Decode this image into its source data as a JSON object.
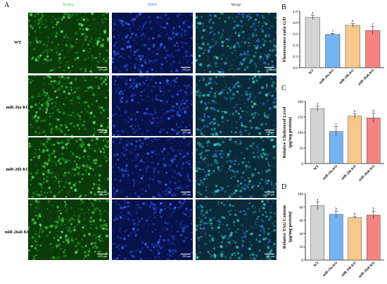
{
  "panel_a": {
    "letter": "A",
    "columns": [
      {
        "label": "Bodipy",
        "color": "#2ecc40"
      },
      {
        "label": "DAPI",
        "color": "#3b6cff"
      },
      {
        "label": "Merge",
        "color": "#333333"
      }
    ],
    "rows": [
      "WT",
      "miR-26a KO",
      "miR-26b KO",
      "miR-26ab KO"
    ],
    "scale_label": "200 μm"
  },
  "chart_data": [
    {
      "panel": "B",
      "type": "bar",
      "categories": [
        "WT",
        "miR-26a KO",
        "miR-26b KO",
        "miR-26ab KO"
      ],
      "values": [
        0.89,
        0.59,
        0.75,
        0.66
      ],
      "errors": [
        0.04,
        0.02,
        0.03,
        0.07
      ],
      "sig_letters": [
        "a",
        "c",
        "b",
        "c"
      ],
      "colors": [
        "#d3d3d3",
        "#74b4f2",
        "#f7c88a",
        "#f48482"
      ],
      "ylabel": "Fluorescence ratio G/D",
      "ylim": [
        0,
        1.0
      ],
      "yticks": [
        "0.0",
        "0.2",
        "0.4",
        "0.6",
        "0.8",
        "1.0"
      ]
    },
    {
      "panel": "C",
      "type": "bar",
      "categories": [
        "WT",
        "miR-26a KO",
        "miR-26b KO",
        "miR-26ab KO"
      ],
      "values": [
        177,
        103,
        153,
        147
      ],
      "errors": [
        8,
        16,
        7,
        15
      ],
      "sig_letters": [
        "a",
        "c",
        "b",
        "b"
      ],
      "colors": [
        "#d3d3d3",
        "#74b4f2",
        "#f7c88a",
        "#f48482"
      ],
      "ylabel": "Relative Cholesterol Level (μg/mg protein)",
      "ylim": [
        0,
        200
      ],
      "yticks": [
        "0",
        "50",
        "100",
        "150",
        "200"
      ]
    },
    {
      "panel": "D",
      "type": "bar",
      "categories": [
        "WT",
        "miR-26a KO",
        "miR-26b KO",
        "miR-26ab KO"
      ],
      "values": [
        82,
        69,
        64,
        68
      ],
      "errors": [
        6,
        5,
        2,
        6
      ],
      "sig_letters": [
        "a",
        "b",
        "b",
        "b"
      ],
      "colors": [
        "#d3d3d3",
        "#74b4f2",
        "#f7c88a",
        "#f48482"
      ],
      "ylabel": "Relative TAG Content (μg/mg protein)",
      "ylim": [
        0,
        100
      ],
      "yticks": [
        "0",
        "20",
        "40",
        "60",
        "80",
        "100"
      ]
    }
  ]
}
